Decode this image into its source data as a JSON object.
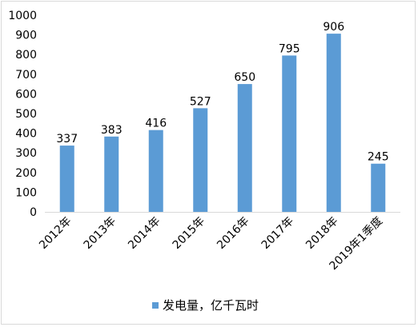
{
  "chart_data": {
    "type": "bar",
    "categories": [
      "2012年",
      "2013年",
      "2014年",
      "2015年",
      "2016年",
      "2017年",
      "2018年",
      "2019年1季度"
    ],
    "series": [
      {
        "name": "发电量，亿千瓦时",
        "values": [
          337,
          383,
          416,
          527,
          650,
          795,
          906,
          245
        ],
        "color": "#5b9bd5"
      }
    ],
    "ylim": [
      0,
      1000
    ],
    "yticks": [
      0,
      100,
      200,
      300,
      400,
      500,
      600,
      700,
      800,
      900,
      1000
    ],
    "grid": false,
    "legend_position": "bottom",
    "data_labels": true
  }
}
